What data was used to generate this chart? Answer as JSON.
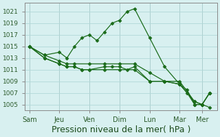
{
  "background_color": "#d8f0f0",
  "grid_color": "#b0d8d8",
  "line_color": "#1a6b1a",
  "xlabel": "Pression niveau de la mer( hPa )",
  "xlabel_fontsize": 9,
  "ytick_labels": [
    1005,
    1007,
    1009,
    1011,
    1013,
    1015,
    1017,
    1019,
    1021
  ],
  "ylim": [
    1004,
    1022.5
  ],
  "xtick_labels": [
    "Sam",
    "Jeu",
    "Ven",
    "Dim",
    "Lun",
    "Mar",
    "Mer"
  ],
  "xtick_positions": [
    0,
    2,
    4,
    6,
    8,
    10,
    11.5
  ],
  "series": [
    {
      "x": [
        0,
        1,
        2,
        2.5,
        3,
        3.5,
        4,
        4.5,
        5,
        5.5,
        6,
        6.5,
        7,
        8,
        9,
        10,
        11,
        11.5,
        12
      ],
      "y": [
        1015,
        1013.5,
        1014,
        1013,
        1015,
        1016.5,
        1017,
        1016,
        1017.5,
        1019,
        1019.5,
        1021,
        1021.5,
        1016.5,
        1011.5,
        1008.5,
        1005.5,
        1005,
        1004.5
      ]
    },
    {
      "x": [
        0,
        1,
        2,
        2.5,
        3,
        3.5,
        4,
        5,
        5.5,
        6,
        6.5,
        7,
        8,
        9,
        10,
        10.5,
        11,
        11.5,
        12
      ],
      "y": [
        1015,
        1013,
        1012,
        1011.5,
        1011.5,
        1011,
        1011,
        1011.5,
        1011.5,
        1011.5,
        1011,
        1011.5,
        1009,
        1009,
        1008.5,
        1007.5,
        1005,
        1005,
        1007
      ]
    },
    {
      "x": [
        0,
        1,
        2,
        2.5,
        3,
        3.5,
        4,
        5,
        6,
        7,
        8,
        9,
        10,
        10.5,
        11,
        11.5,
        12
      ],
      "y": [
        1015,
        1013,
        1012,
        1011.5,
        1011.5,
        1011,
        1011,
        1011,
        1011,
        1011,
        1009,
        1009,
        1008.5,
        1007,
        1005,
        1005,
        1007
      ]
    },
    {
      "x": [
        0,
        1,
        2,
        2.5,
        3,
        4,
        5,
        6,
        7,
        8,
        9,
        10,
        11,
        11.5,
        12
      ],
      "y": [
        1015,
        1013.5,
        1012.5,
        1012,
        1012,
        1012,
        1012,
        1012,
        1012,
        1010.5,
        1009,
        1009,
        1005.5,
        1005,
        1007
      ]
    }
  ]
}
